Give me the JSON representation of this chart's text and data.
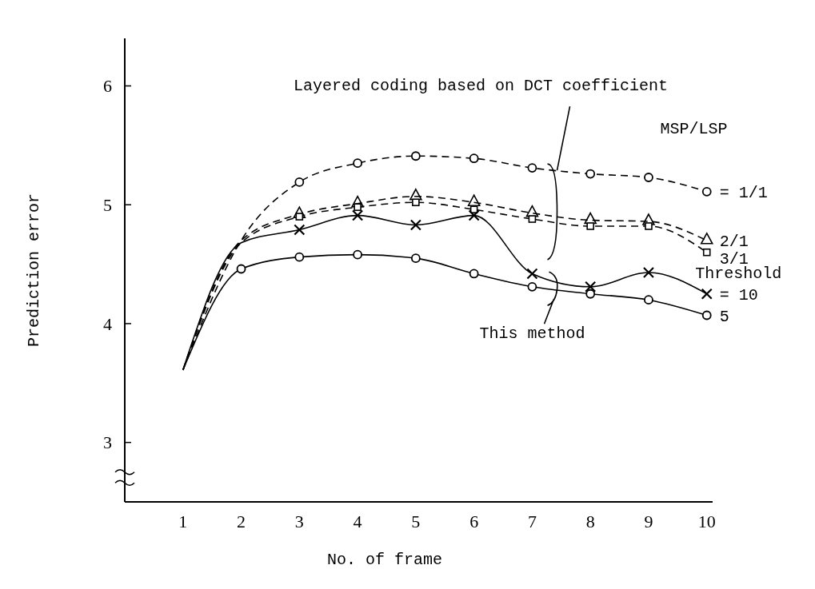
{
  "chart_data": {
    "type": "line",
    "xlabel": "No. of frame",
    "ylabel": "Prediction error",
    "x": [
      1,
      2,
      3,
      4,
      5,
      6,
      7,
      8,
      9,
      10
    ],
    "xlim": [
      0,
      10.1
    ],
    "ylim": [
      2.5,
      6.4
    ],
    "xticks": [
      1,
      2,
      3,
      4,
      5,
      6,
      7,
      8,
      9,
      10
    ],
    "yticks": [
      3,
      4,
      5,
      6
    ],
    "grid": false,
    "series": [
      {
        "name": "= 1/1",
        "color": "#000000",
        "marker": "circle",
        "line_style": "dashed",
        "values": [
          3.61,
          4.7,
          5.19,
          5.35,
          5.41,
          5.39,
          5.31,
          5.26,
          5.23,
          5.11
        ]
      },
      {
        "name": "2/1",
        "color": "#000000",
        "marker": "triangle",
        "line_style": "dashed",
        "values": [
          3.61,
          4.7,
          4.92,
          5.01,
          5.07,
          5.02,
          4.93,
          4.87,
          4.86,
          4.7
        ]
      },
      {
        "name": "3/1",
        "color": "#000000",
        "marker": "square",
        "line_style": "dashed",
        "values": [
          3.61,
          4.68,
          4.9,
          4.98,
          5.02,
          4.96,
          4.88,
          4.82,
          4.82,
          4.6
        ]
      },
      {
        "name": "= 10",
        "color": "#000000",
        "marker": "cross",
        "line_style": "solid",
        "values": [
          3.61,
          4.68,
          4.79,
          4.91,
          4.83,
          4.91,
          4.42,
          4.31,
          4.43,
          4.25
        ]
      },
      {
        "name": "5",
        "color": "#000000",
        "marker": "circle",
        "line_style": "solid",
        "values": [
          3.61,
          4.46,
          4.56,
          4.58,
          4.55,
          4.42,
          4.31,
          4.25,
          4.2,
          4.07
        ]
      }
    ],
    "annotations": [
      {
        "text": "Layered coding based on DCT coefficient",
        "x": 7.4,
        "y": 5.29
      },
      {
        "text": "This method",
        "x": 7.4,
        "y": 4.3
      },
      "MSP/LSP",
      "Threshold"
    ]
  }
}
